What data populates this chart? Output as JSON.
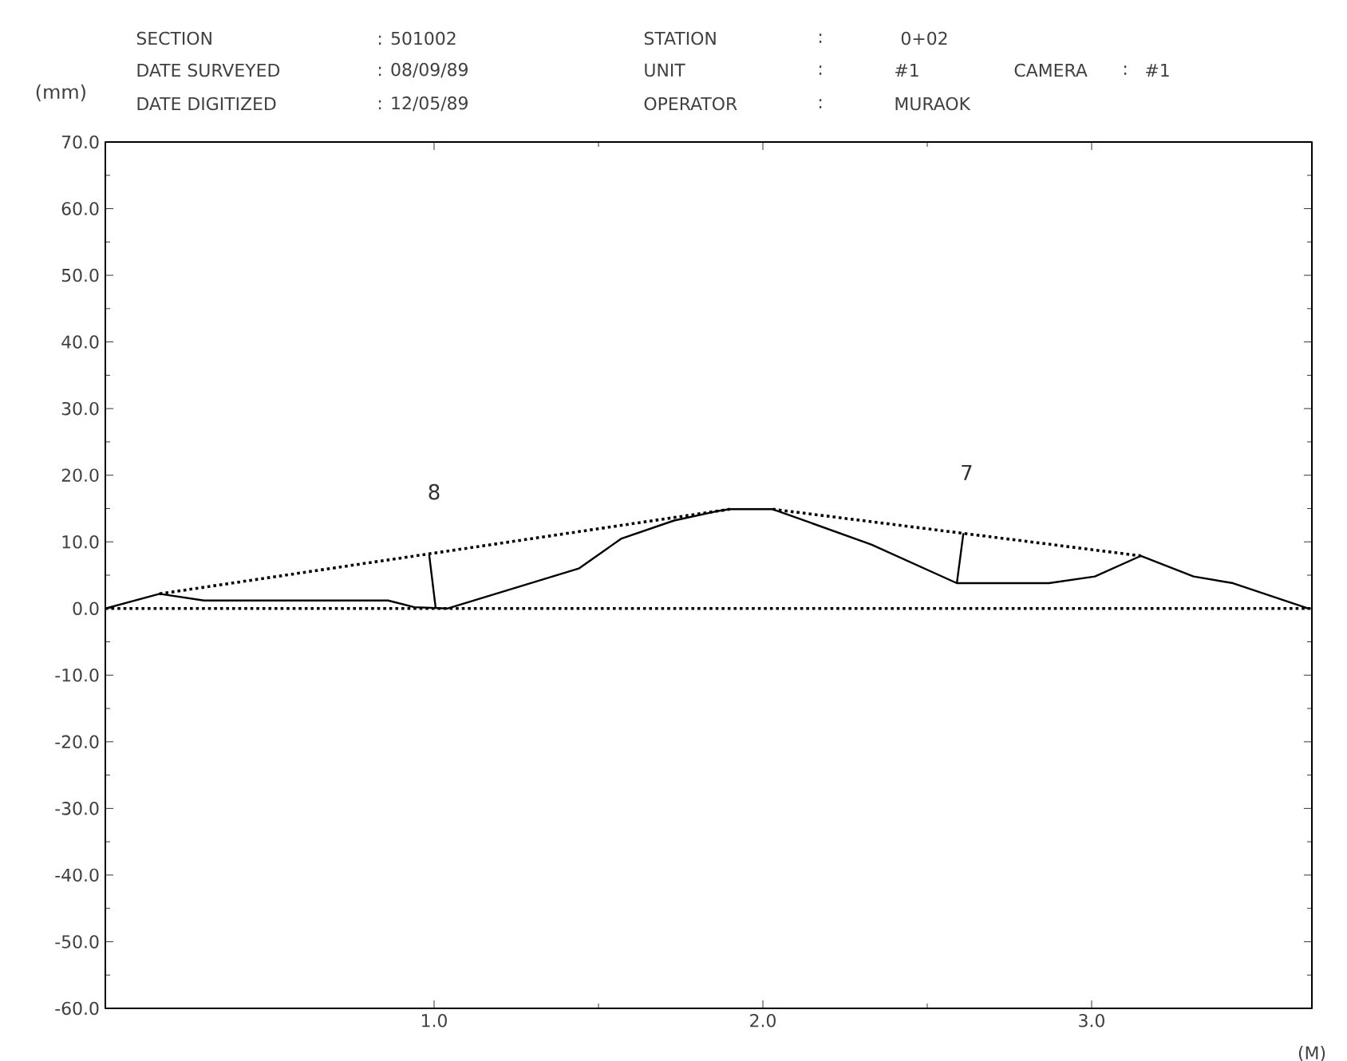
{
  "chart_data": {
    "type": "line",
    "xlabel": "(M)",
    "ylabel": "(mm)",
    "xlim": [
      0,
      3.67
    ],
    "ylim": [
      -60,
      70
    ],
    "xticks": [
      {
        "value": 1,
        "label": "1.0"
      },
      {
        "value": 2,
        "label": "2.0"
      },
      {
        "value": 3,
        "label": "3.0"
      }
    ],
    "yticks": [
      {
        "value": 70,
        "label": "70.0"
      },
      {
        "value": 60,
        "label": "60.0"
      },
      {
        "value": 50,
        "label": "50.0"
      },
      {
        "value": 40,
        "label": "40.0"
      },
      {
        "value": 30,
        "label": "30.0"
      },
      {
        "value": 20,
        "label": "20.0"
      },
      {
        "value": 10,
        "label": "10.0"
      },
      {
        "value": 0,
        "label": "0.0"
      },
      {
        "value": -10,
        "label": "-10.0"
      },
      {
        "value": -20,
        "label": "-20.0"
      },
      {
        "value": -30,
        "label": "-30.0"
      },
      {
        "value": -40,
        "label": "-40.0"
      },
      {
        "value": -50,
        "label": "-50.0"
      },
      {
        "value": -60,
        "label": "-60.0"
      }
    ],
    "grid": false,
    "marker": "none",
    "series": [
      {
        "color": "#000000",
        "line_style": "solid",
        "x": [
          0,
          0.165,
          0.3,
          0.86,
          0.94,
          1.04,
          1.44,
          1.57,
          1.73,
          1.86,
          1.9,
          2.03,
          2.33,
          2.59,
          2.87,
          3.01,
          3.15,
          3.31,
          3.43,
          3.66
        ],
        "values": [
          0,
          2.2,
          1.2,
          1.2,
          0.2,
          0,
          6.0,
          10.5,
          13.2,
          14.6,
          14.9,
          14.9,
          9.6,
          3.8,
          3.8,
          4.8,
          7.9,
          4.8,
          3.8,
          0
        ]
      },
      {
        "color": "#000000",
        "line_style": "dotted",
        "x": [
          0.165,
          1.9,
          1.96,
          2.03,
          3.15
        ],
        "values": [
          2.2,
          14.9,
          null,
          14.9,
          7.9
        ]
      },
      {
        "color": "#000000",
        "line_style": "solid",
        "x": [
          0.985,
          1.005
        ],
        "values": [
          8.1,
          0
        ]
      },
      {
        "color": "#000000",
        "line_style": "solid",
        "x": [
          2.61,
          2.59
        ],
        "values": [
          11.3,
          3.8
        ]
      }
    ],
    "ref_lines": [
      {
        "axis": "y",
        "value": 0,
        "line_style": "dotted",
        "color": "#000000"
      }
    ],
    "annotations": [
      "SECTION",
      ": 501002",
      "STATION",
      ":",
      "0+02",
      "DATE SURVEYED",
      ": 08/09/89",
      "UNIT",
      ":",
      "#1",
      "CAMERA",
      ":",
      "#1",
      "DATE DIGITIZED",
      ": 12/05/89",
      "OPERATOR",
      ":",
      "MURAOK",
      "8",
      "7"
    ]
  }
}
